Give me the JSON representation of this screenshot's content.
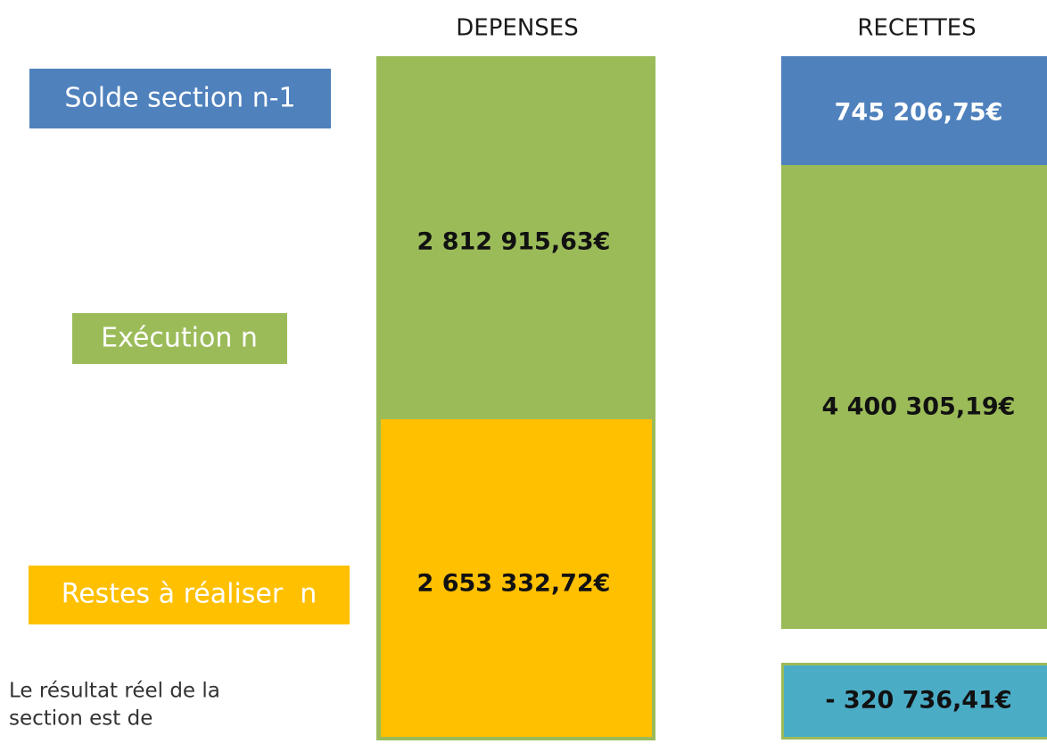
{
  "columns": {
    "depenses": {
      "title": "DEPENSES",
      "execution": "2 812 915,63€",
      "restes": "2 653 332,72€"
    },
    "recettes": {
      "title": "RECETTES",
      "solde": "745 206,75€",
      "execution": "4 400 305,19€",
      "resultat": "- 320 736,41€"
    }
  },
  "labels": {
    "solde": "Solde section n-1",
    "execution": "Exécution n",
    "restes": "Restes à réaliser  n"
  },
  "note": {
    "lines": [
      "Le résultat réel de la",
      "section est de"
    ]
  }
}
